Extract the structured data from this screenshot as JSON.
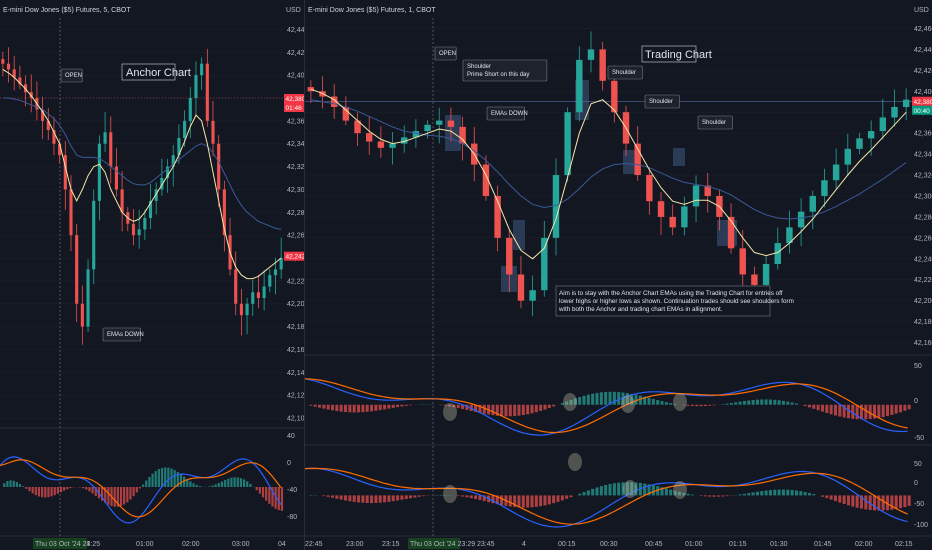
{
  "colors": {
    "background": "#131722",
    "grid": "#1e222d",
    "up": "#26a69a",
    "down": "#ef5350",
    "ema_fast": "#f5e6a8",
    "ema_slow": "#3b5998",
    "macd": "#2962ff",
    "signal": "#ff6d00",
    "hist_up": "#26a69a",
    "hist_down": "#ef5350",
    "highlight": "#5d7fb5",
    "tag_red": "#f23645",
    "tag_green": "#089981"
  },
  "left": {
    "title": "E-mini Dow Jones ($5) Futures, 5, CBOT",
    "currency": "USD",
    "chart_label": "Anchor Chart",
    "open_label": "OPEN",
    "emas_label": "EMAs DOWN",
    "price_tag_1": "42,380",
    "price_tag_1b": "01:46",
    "price_tag_2": "42,242",
    "date_tag": "Thu 03 Oct '24   23:25",
    "osc_axis": [
      "40",
      "0",
      "-40",
      "-80"
    ]
  },
  "right": {
    "title": "E-mini Dow Jones ($5) Futures, 1, CBOT",
    "currency": "USD",
    "chart_label": "Trading Chart",
    "open_label": "OPEN",
    "shoulder_prime_1": "Shoulder",
    "shoulder_prime_2": "Prime Short on this day",
    "emas_label": "EMAs DOWN",
    "shoulder_2": "Shoulder",
    "shoulder_3": "Shoulder",
    "shoulder_4": "Shoulder",
    "note_lines": [
      "Aim is to stay with the Anchor Chart EMAs using the Trading Chart for entries off",
      "lower highs or higher lows as shown. Continuation trades should see shoulders form",
      "with both the Anchor and trading chart EMAs in allignment."
    ],
    "price_tag_1": "42,380",
    "price_tag_1b": "00:40",
    "date_tag": "Thu 03 Oct '24   23:29",
    "osc1_axis": [
      "50",
      "0",
      "-50"
    ],
    "osc2_axis": [
      "50",
      "0",
      "-50",
      "-100"
    ]
  },
  "chart_data": [
    {
      "type": "candlestick",
      "title": "E-mini Dow Jones ($5) Futures, 5, CBOT",
      "y_axis_ticks": [
        "42,440",
        "42,420",
        "42,400",
        "42,380",
        "42,360",
        "42,340",
        "42,320",
        "42,300",
        "42,280",
        "42,260",
        "42,240",
        "42,220",
        "42,200",
        "42,180",
        "42,160",
        "42,140",
        "42,120",
        "42,100"
      ],
      "x_axis_ticks": [
        "4",
        "01:00",
        "02:00",
        "03:00",
        "04"
      ],
      "ylim": [
        42100,
        42450
      ],
      "close_series": [
        42410,
        42405,
        42398,
        42392,
        42385,
        42380,
        42370,
        42360,
        42352,
        42340,
        42330,
        42300,
        42260,
        42200,
        42180,
        42230,
        42290,
        42340,
        42350,
        42320,
        42300,
        42280,
        42270,
        42260,
        42265,
        42275,
        42290,
        42300,
        42310,
        42320,
        42330,
        42345,
        42360,
        42380,
        42400,
        42410,
        42360,
        42340,
        42300,
        42260,
        42230,
        42200,
        42190,
        42200,
        42210,
        42205,
        42215,
        42225,
        42230,
        42240
      ],
      "ema_fast": [
        42405,
        42402,
        42398,
        42393,
        42388,
        42382,
        42375,
        42368,
        42360,
        42350,
        42340,
        42320,
        42300,
        42290,
        42300,
        42312,
        42320,
        42322,
        42315,
        42300,
        42290,
        42280,
        42275,
        42272,
        42274,
        42280,
        42288,
        42296,
        42304,
        42312,
        42320,
        42330,
        42342,
        42355,
        42365,
        42360,
        42340,
        42315,
        42290,
        42265,
        42245,
        42232,
        42225,
        42222,
        42222,
        42224,
        42228,
        42232,
        42236,
        42240
      ],
      "ema_slow": [
        42380,
        42380,
        42379,
        42378,
        42376,
        42374,
        42372,
        42370,
        42366,
        42362,
        42356,
        42348,
        42338,
        42330,
        42328,
        42328,
        42328,
        42327,
        42324,
        42320,
        42316,
        42312,
        42308,
        42305,
        42304,
        42304,
        42306,
        42310,
        42314,
        42318,
        42322,
        42326,
        42330,
        42334,
        42338,
        42340,
        42338,
        42332,
        42324,
        42314,
        42304,
        42294,
        42286,
        42280,
        42276,
        42272,
        42270,
        42268,
        42266,
        42265
      ]
    },
    {
      "type": "candlestick",
      "title": "E-mini Dow Jones ($5) Futures, 1, CBOT",
      "y_axis_ticks": [
        "42,460",
        "42,440",
        "42,420",
        "42,400",
        "42,380",
        "42,360",
        "42,340",
        "42,320",
        "42,300",
        "42,280",
        "42,260",
        "42,240",
        "42,220",
        "42,200",
        "42,180",
        "42,160"
      ],
      "x_axis_ticks": [
        "22:45",
        "23:00",
        "23:15",
        "23:45",
        "4",
        "00:15",
        "00:30",
        "00:45",
        "01:00",
        "01:15",
        "01:30",
        "01:45",
        "02:00",
        "02:15"
      ],
      "ylim": [
        42150,
        42470
      ],
      "close_series": [
        42400,
        42395,
        42385,
        42372,
        42360,
        42352,
        42346,
        42350,
        42356,
        42362,
        42368,
        42372,
        42366,
        42350,
        42330,
        42300,
        42260,
        42225,
        42200,
        42210,
        42260,
        42320,
        42380,
        42430,
        42440,
        42410,
        42380,
        42350,
        42320,
        42295,
        42280,
        42270,
        42290,
        42310,
        42300,
        42280,
        42250,
        42225,
        42215,
        42235,
        42255,
        42270,
        42285,
        42300,
        42315,
        42330,
        42345,
        42355,
        42362,
        42375,
        42385,
        42392
      ],
      "ema_fast": [
        42402,
        42398,
        42392,
        42382,
        42372,
        42362,
        42354,
        42350,
        42352,
        42356,
        42360,
        42364,
        42362,
        42354,
        42340,
        42320,
        42295,
        42268,
        42248,
        42240,
        42250,
        42278,
        42318,
        42360,
        42388,
        42392,
        42382,
        42365,
        42345,
        42325,
        42308,
        42295,
        42292,
        42296,
        42296,
        42290,
        42276,
        42260,
        42246,
        42243,
        42246,
        42255,
        42266,
        42278,
        42292,
        42306,
        42320,
        42333,
        42344,
        42356,
        42368,
        42380
      ],
      "ema_slow": [
        42392,
        42390,
        42388,
        42385,
        42381,
        42376,
        42371,
        42366,
        42362,
        42360,
        42358,
        42357,
        42355,
        42350,
        42343,
        42334,
        42323,
        42311,
        42300,
        42292,
        42289,
        42291,
        42297,
        42307,
        42318,
        42326,
        42330,
        42331,
        42330,
        42327,
        42322,
        42317,
        42313,
        42311,
        42309,
        42306,
        42301,
        42294,
        42287,
        42282,
        42279,
        42278,
        42279,
        42281,
        42285,
        42290,
        42296,
        42302,
        42309,
        42316,
        42324,
        42332
      ]
    }
  ]
}
